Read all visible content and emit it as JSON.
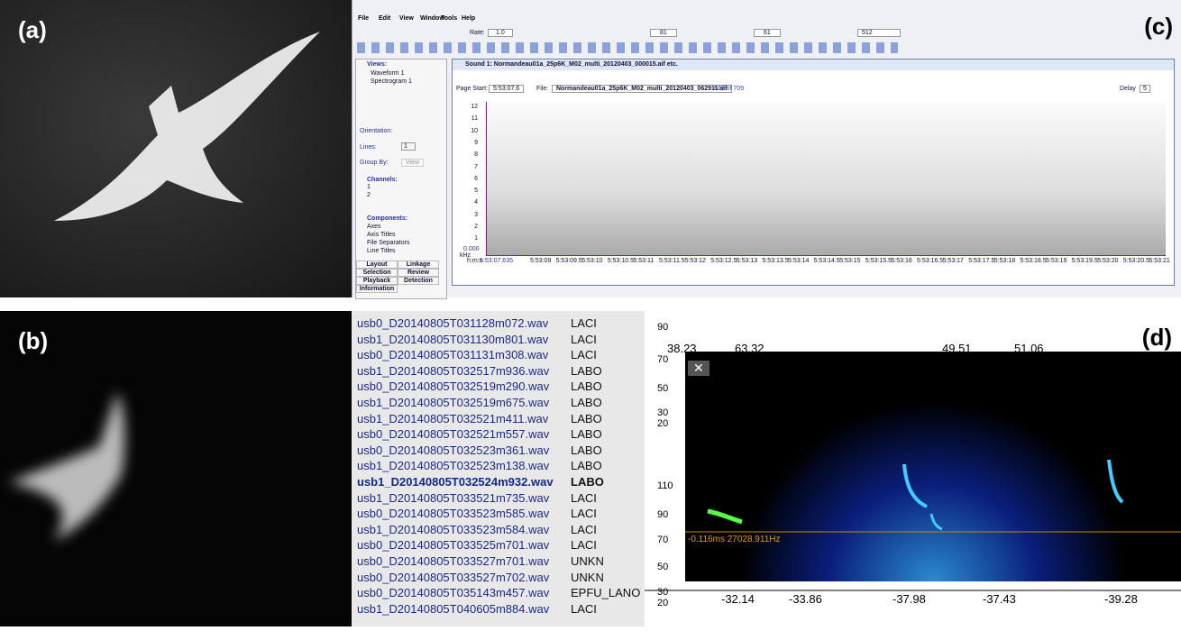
{
  "panels": {
    "a": "(a)",
    "b": "(b)",
    "c": "(c)",
    "d": "(d)"
  },
  "software": {
    "menu": [
      "File",
      "Edit",
      "View",
      "Window",
      "Tools",
      "Help"
    ],
    "toolbar": {
      "rate_label": "Rate:",
      "rate": "1.0",
      "brightness": "81",
      "contrast": "61",
      "size": "512"
    },
    "left_pane": {
      "views_title": "Views:",
      "views": [
        "Waveform 1",
        "Spectrogram 1"
      ],
      "orientation": "Orientation:",
      "lines": "Lines:",
      "lines_value": "1",
      "group_by": "Group By:",
      "group_value": "View",
      "channels_title": "Channels:",
      "channels": [
        "1",
        "2"
      ],
      "components_title": "Components:",
      "components": [
        "Axes",
        "Axis Titles",
        "File Separators",
        "Line Titles"
      ],
      "tabs": [
        "Layout",
        "Linkage",
        "Selection",
        "Review",
        "Playback",
        "Detection",
        "Information"
      ]
    },
    "window_title": "Sound 1: Normandeau01a_25p6K_M02_multi_20120403_000015.aif etc.",
    "page_start_label": "Page Start:",
    "page_start": "5:53:07.6",
    "file_label": "File:",
    "file": "Normandeau01a_25p6K_M02_multi_20120403_062911.aif",
    "page_count": "663 of 709",
    "delay_label": "Delay",
    "delay": "5",
    "y_ticks": [
      "12",
      "11",
      "10",
      "9",
      "8",
      "7",
      "6",
      "5",
      "4",
      "3",
      "2",
      "1"
    ],
    "y_origin": "0.000",
    "y_unit": "kHz",
    "x_unit": "h:m:s",
    "x_start": "5:53:07.635",
    "x_ticks": [
      "5:53:09",
      "5:53:09.5",
      "5:53:10",
      "5:53:10.5",
      "5:53:11",
      "5:53:11.5",
      "5:53:12",
      "5:53:12.5",
      "5:53:13",
      "5:53:13.5",
      "5:53:14",
      "5:53:14.5",
      "5:53:15",
      "5:53:15.5",
      "5:53:16",
      "5:53:16.5",
      "5:53:17",
      "5:53:17.5",
      "5:53:18",
      "5:53:18.5",
      "5:53:19",
      "5:53:19.5",
      "5:53:20",
      "5:53:20.5",
      "5:53:21"
    ]
  },
  "file_list": {
    "rows": [
      [
        "usb0_D20140805T031128m072.wav",
        "LACI"
      ],
      [
        "usb1_D20140805T031130m801.wav",
        "LACI"
      ],
      [
        "usb0_D20140805T031131m308.wav",
        "LACI"
      ],
      [
        "usb1_D20140805T032517m936.wav",
        "LABO"
      ],
      [
        "usb0_D20140805T032519m290.wav",
        "LABO"
      ],
      [
        "usb1_D20140805T032519m675.wav",
        "LABO"
      ],
      [
        "usb1_D20140805T032521m411.wav",
        "LABO"
      ],
      [
        "usb0_D20140805T032521m557.wav",
        "LABO"
      ],
      [
        "usb0_D20140805T032523m361.wav",
        "LABO"
      ],
      [
        "usb1_D20140805T032523m138.wav",
        "LABO"
      ],
      [
        "usb1_D20140805T032524m932.wav",
        "LABO"
      ],
      [
        "usb1_D20140805T033521m735.wav",
        "LACI"
      ],
      [
        "usb0_D20140805T033523m585.wav",
        "LACI"
      ],
      [
        "usb1_D20140805T033523m584.wav",
        "LACI"
      ],
      [
        "usb0_D20140805T033525m701.wav",
        "LACI"
      ],
      [
        "usb0_D20140805T033527m701.wav",
        "UNKN"
      ],
      [
        "usb0_D20140805T033527m702.wav",
        "UNKN"
      ],
      [
        "usb0_D20140805T035143m457.wav",
        "EPFU_LANO"
      ],
      [
        "usb1_D20140805T040605m884.wav",
        "LACI"
      ]
    ],
    "selected": 10
  },
  "bat_view": {
    "left_labels": [
      "90",
      "70",
      "50",
      "30",
      "20",
      "110",
      "90",
      "70",
      "50",
      "30",
      "20"
    ],
    "top_values": [
      "38.23",
      "63.32",
      "49.51",
      "51.06"
    ],
    "bottom_values": [
      "-32.14",
      "-33.86",
      "-37.98",
      "-37.43",
      "-39.28"
    ],
    "close": "✕",
    "cursor": "-0.116ms 27028.911Hz"
  }
}
